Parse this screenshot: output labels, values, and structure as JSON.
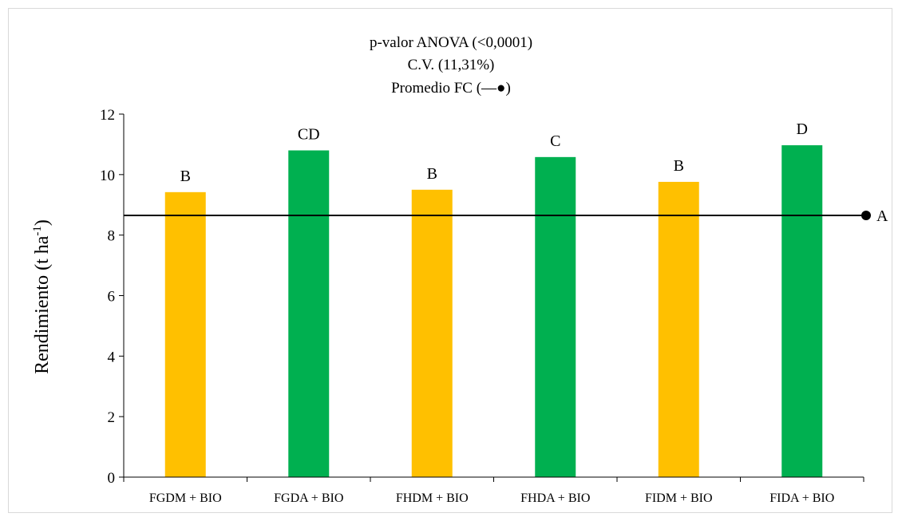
{
  "chart_data": {
    "type": "bar",
    "title_lines": [
      "p-valor ANOVA (<0,0001)",
      "C.V. (11,31%)",
      "Promedio FC (—●)"
    ],
    "ylabel": "Rendimiento (t ha",
    "ylabel_sup": "-1",
    "ylabel_close": ")",
    "ylim": [
      0,
      12
    ],
    "yticks": [
      0,
      2,
      4,
      6,
      8,
      10,
      12
    ],
    "grid": false,
    "legend": "none",
    "categories": [
      "FGDM + BIO",
      "FGDA + BIO",
      "FHDM + BIO",
      "FHDA + BIO",
      "FIDM + BIO",
      "FIDA + BIO"
    ],
    "values": [
      9.42,
      10.8,
      9.5,
      10.58,
      9.76,
      10.97
    ],
    "bar_labels": [
      "B",
      "CD",
      "B",
      "C",
      "B",
      "D"
    ],
    "bar_colors": [
      "#ffc000",
      "#00b050",
      "#ffc000",
      "#00b050",
      "#ffc000",
      "#00b050"
    ],
    "reference_line": {
      "value": 8.65,
      "label": "A",
      "color": "#000000"
    }
  }
}
